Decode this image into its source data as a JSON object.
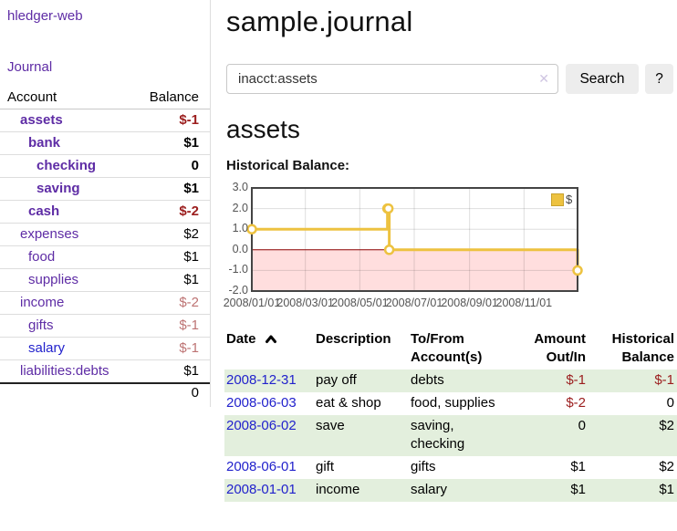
{
  "app": {
    "title": "hledger-web"
  },
  "sidebar": {
    "nav_journal": "Journal",
    "account_table": {
      "header_account": "Account",
      "header_balance": "Balance",
      "rows": [
        {
          "account": "assets",
          "balance": "$-1",
          "depth": 1,
          "bold": true,
          "account_color": "purple",
          "balance_color": "negative-strong"
        },
        {
          "account": "bank",
          "balance": "$1",
          "depth": 2,
          "bold": true,
          "account_color": "purple",
          "balance_color": "normal"
        },
        {
          "account": "checking",
          "balance": "0",
          "depth": 3,
          "bold": true,
          "account_color": "purple",
          "balance_color": "normal"
        },
        {
          "account": "saving",
          "balance": "$1",
          "depth": 3,
          "bold": true,
          "account_color": "purple",
          "balance_color": "normal"
        },
        {
          "account": "cash",
          "balance": "$-2",
          "depth": 2,
          "bold": true,
          "account_color": "purple",
          "balance_color": "negative-strong"
        },
        {
          "account": "expenses",
          "balance": "$2",
          "depth": 1,
          "bold": false,
          "account_color": "purple",
          "balance_color": "normal"
        },
        {
          "account": "food",
          "balance": "$1",
          "depth": 2,
          "bold": false,
          "account_color": "purple",
          "balance_color": "normal"
        },
        {
          "account": "supplies",
          "balance": "$1",
          "depth": 2,
          "bold": false,
          "account_color": "purple",
          "balance_color": "normal"
        },
        {
          "account": "income",
          "balance": "$-2",
          "depth": 1,
          "bold": false,
          "account_color": "purple",
          "balance_color": "negative-soft"
        },
        {
          "account": "gifts",
          "balance": "$-1",
          "depth": 2,
          "bold": false,
          "account_color": "purple",
          "balance_color": "negative-soft"
        },
        {
          "account": "salary",
          "balance": "$-1",
          "depth": 2,
          "bold": false,
          "account_color": "blue",
          "balance_color": "negative-soft"
        },
        {
          "account": "liabilities:debts",
          "balance": "$1",
          "depth": 1,
          "bold": false,
          "account_color": "purple",
          "balance_color": "normal"
        }
      ],
      "total": "0"
    }
  },
  "main": {
    "title": "sample.journal",
    "search": {
      "value": "inacct:assets",
      "clear_icon": "✕",
      "button_label": "Search",
      "help_label": "?"
    },
    "account_heading": "assets",
    "section_label": "Historical Balance:"
  },
  "chart_data": {
    "type": "line",
    "step": true,
    "title": "Historical Balance:",
    "series": [
      {
        "name": "$",
        "color": "#edc240",
        "points": [
          [
            "2008-01-01",
            1
          ],
          [
            "2008-06-01",
            2
          ],
          [
            "2008-06-02",
            2
          ],
          [
            "2008-06-03",
            0
          ],
          [
            "2008-12-31",
            -1
          ]
        ]
      }
    ],
    "x_tick_labels": [
      "2008/01/01",
      "2008/03/01",
      "2008/05/01",
      "2008/07/01",
      "2008/09/01",
      "2008/11/01"
    ],
    "y_tick_labels": [
      "3.0",
      "2.0",
      "1.0",
      "0.0",
      "-1.0",
      "-2.0"
    ],
    "y_tick_values": [
      3,
      2,
      1,
      0,
      -1,
      -2
    ],
    "xlim": [
      "2008-01-01",
      "2008-12-31"
    ],
    "ylim": [
      -2,
      3
    ],
    "grid": true,
    "legend_position": "top-right",
    "legend_label": "$"
  },
  "register_table": {
    "headers": {
      "date": "Date",
      "description": "Description",
      "tofrom_line1": "To/From",
      "tofrom_line2": "Account(s)",
      "amount_line1": "Amount",
      "amount_line2": "Out/In",
      "balance_line1": "Historical",
      "balance_line2": "Balance"
    },
    "rows": [
      {
        "date": "2008-12-31",
        "description": "pay off",
        "accounts": "debts",
        "amount": "$-1",
        "amount_negative": true,
        "balance": "$-1",
        "balance_negative": true
      },
      {
        "date": "2008-06-03",
        "description": "eat & shop",
        "accounts": "food, supplies",
        "amount": "$-2",
        "amount_negative": true,
        "balance": "0",
        "balance_negative": false
      },
      {
        "date": "2008-06-02",
        "description": "save",
        "accounts": "saving, checking",
        "amount": "0",
        "amount_negative": false,
        "balance": "$2",
        "balance_negative": false
      },
      {
        "date": "2008-06-01",
        "description": "gift",
        "accounts": "gifts",
        "amount": "$1",
        "amount_negative": false,
        "balance": "$2",
        "balance_negative": false
      },
      {
        "date": "2008-01-01",
        "description": "income",
        "accounts": "salary",
        "amount": "$1",
        "amount_negative": false,
        "balance": "$1",
        "balance_negative": false
      }
    ]
  },
  "colors": {
    "link_purple": "#5e2ca5",
    "link_blue": "#2222cc",
    "negative_strong": "#9b1d1d",
    "negative_soft": "#bd7373",
    "row_stripe_green": "#e3efdd",
    "series_gold": "#edc240",
    "negative_region_pink": "#ffdede",
    "zero_line_red": "#8b0000",
    "plot_border": "#444444"
  }
}
